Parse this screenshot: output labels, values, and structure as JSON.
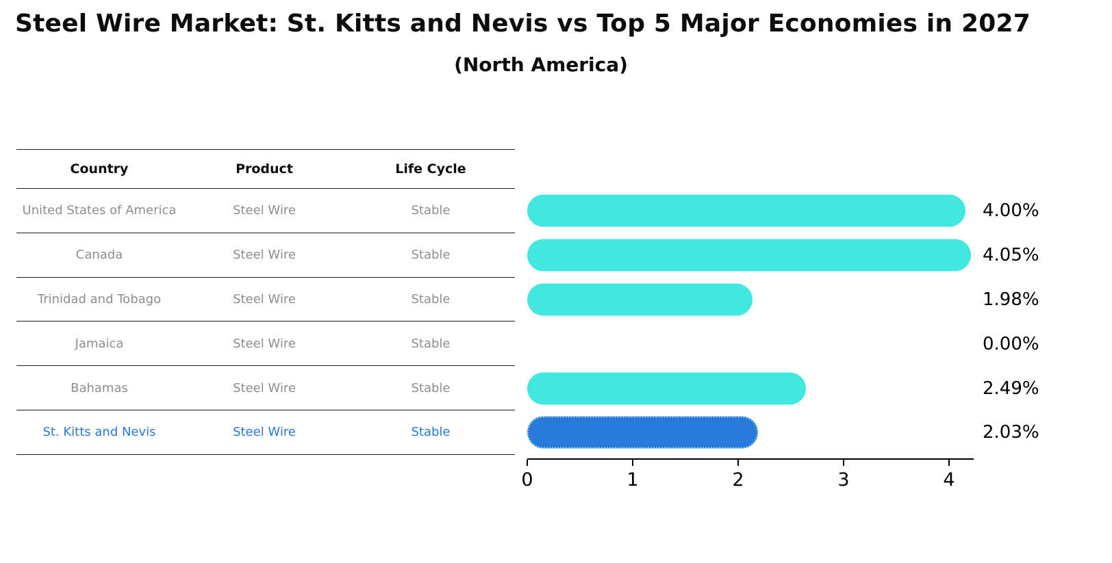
{
  "header": {
    "title": "Steel Wire Market: St. Kitts and Nevis vs Top 5 Major Economies in 2027",
    "subtitle": "(North America)"
  },
  "table": {
    "headers": [
      "Country",
      "Product",
      "Life Cycle"
    ]
  },
  "chart_data": {
    "type": "bar",
    "orientation": "horizontal",
    "title": "Steel Wire Market: St. Kitts and Nevis vs Top 5 Major Economies in 2027",
    "subtitle": "(North America)",
    "categories": [
      "United States of America",
      "Canada",
      "Trinidad and Tobago",
      "Jamaica",
      "Bahamas",
      "St. Kitts and Nevis"
    ],
    "values": [
      4.0,
      4.05,
      1.98,
      0.0,
      2.49,
      2.03
    ],
    "rows": [
      {
        "country": "United States of America",
        "product": "Steel Wire",
        "life_cycle": "Stable",
        "value": 4.0,
        "label": "4.00%",
        "highlight": false
      },
      {
        "country": "Canada",
        "product": "Steel Wire",
        "life_cycle": "Stable",
        "value": 4.05,
        "label": "4.05%",
        "highlight": false
      },
      {
        "country": "Trinidad and Tobago",
        "product": "Steel Wire",
        "life_cycle": "Stable",
        "value": 1.98,
        "label": "1.98%",
        "highlight": false
      },
      {
        "country": "Jamaica",
        "product": "Steel Wire",
        "life_cycle": "Stable",
        "value": 0.0,
        "label": "0.00%",
        "highlight": false
      },
      {
        "country": "Bahamas",
        "product": "Steel Wire",
        "life_cycle": "Stable",
        "value": 2.49,
        "label": "2.49%",
        "highlight": false
      },
      {
        "country": "St. Kitts and Nevis",
        "product": "Steel Wire",
        "life_cycle": "Stable",
        "value": 2.03,
        "label": "2.03%",
        "highlight": true
      }
    ],
    "xticks": [
      "0",
      "1",
      "2",
      "3",
      "4"
    ],
    "xlim": [
      0,
      4.2
    ],
    "grid": false,
    "legend": "none",
    "bar_color": "#40e8e0",
    "highlight_color": "#2979db",
    "highlight_category": "St. Kitts and Nevis",
    "highlight_index": 5
  }
}
